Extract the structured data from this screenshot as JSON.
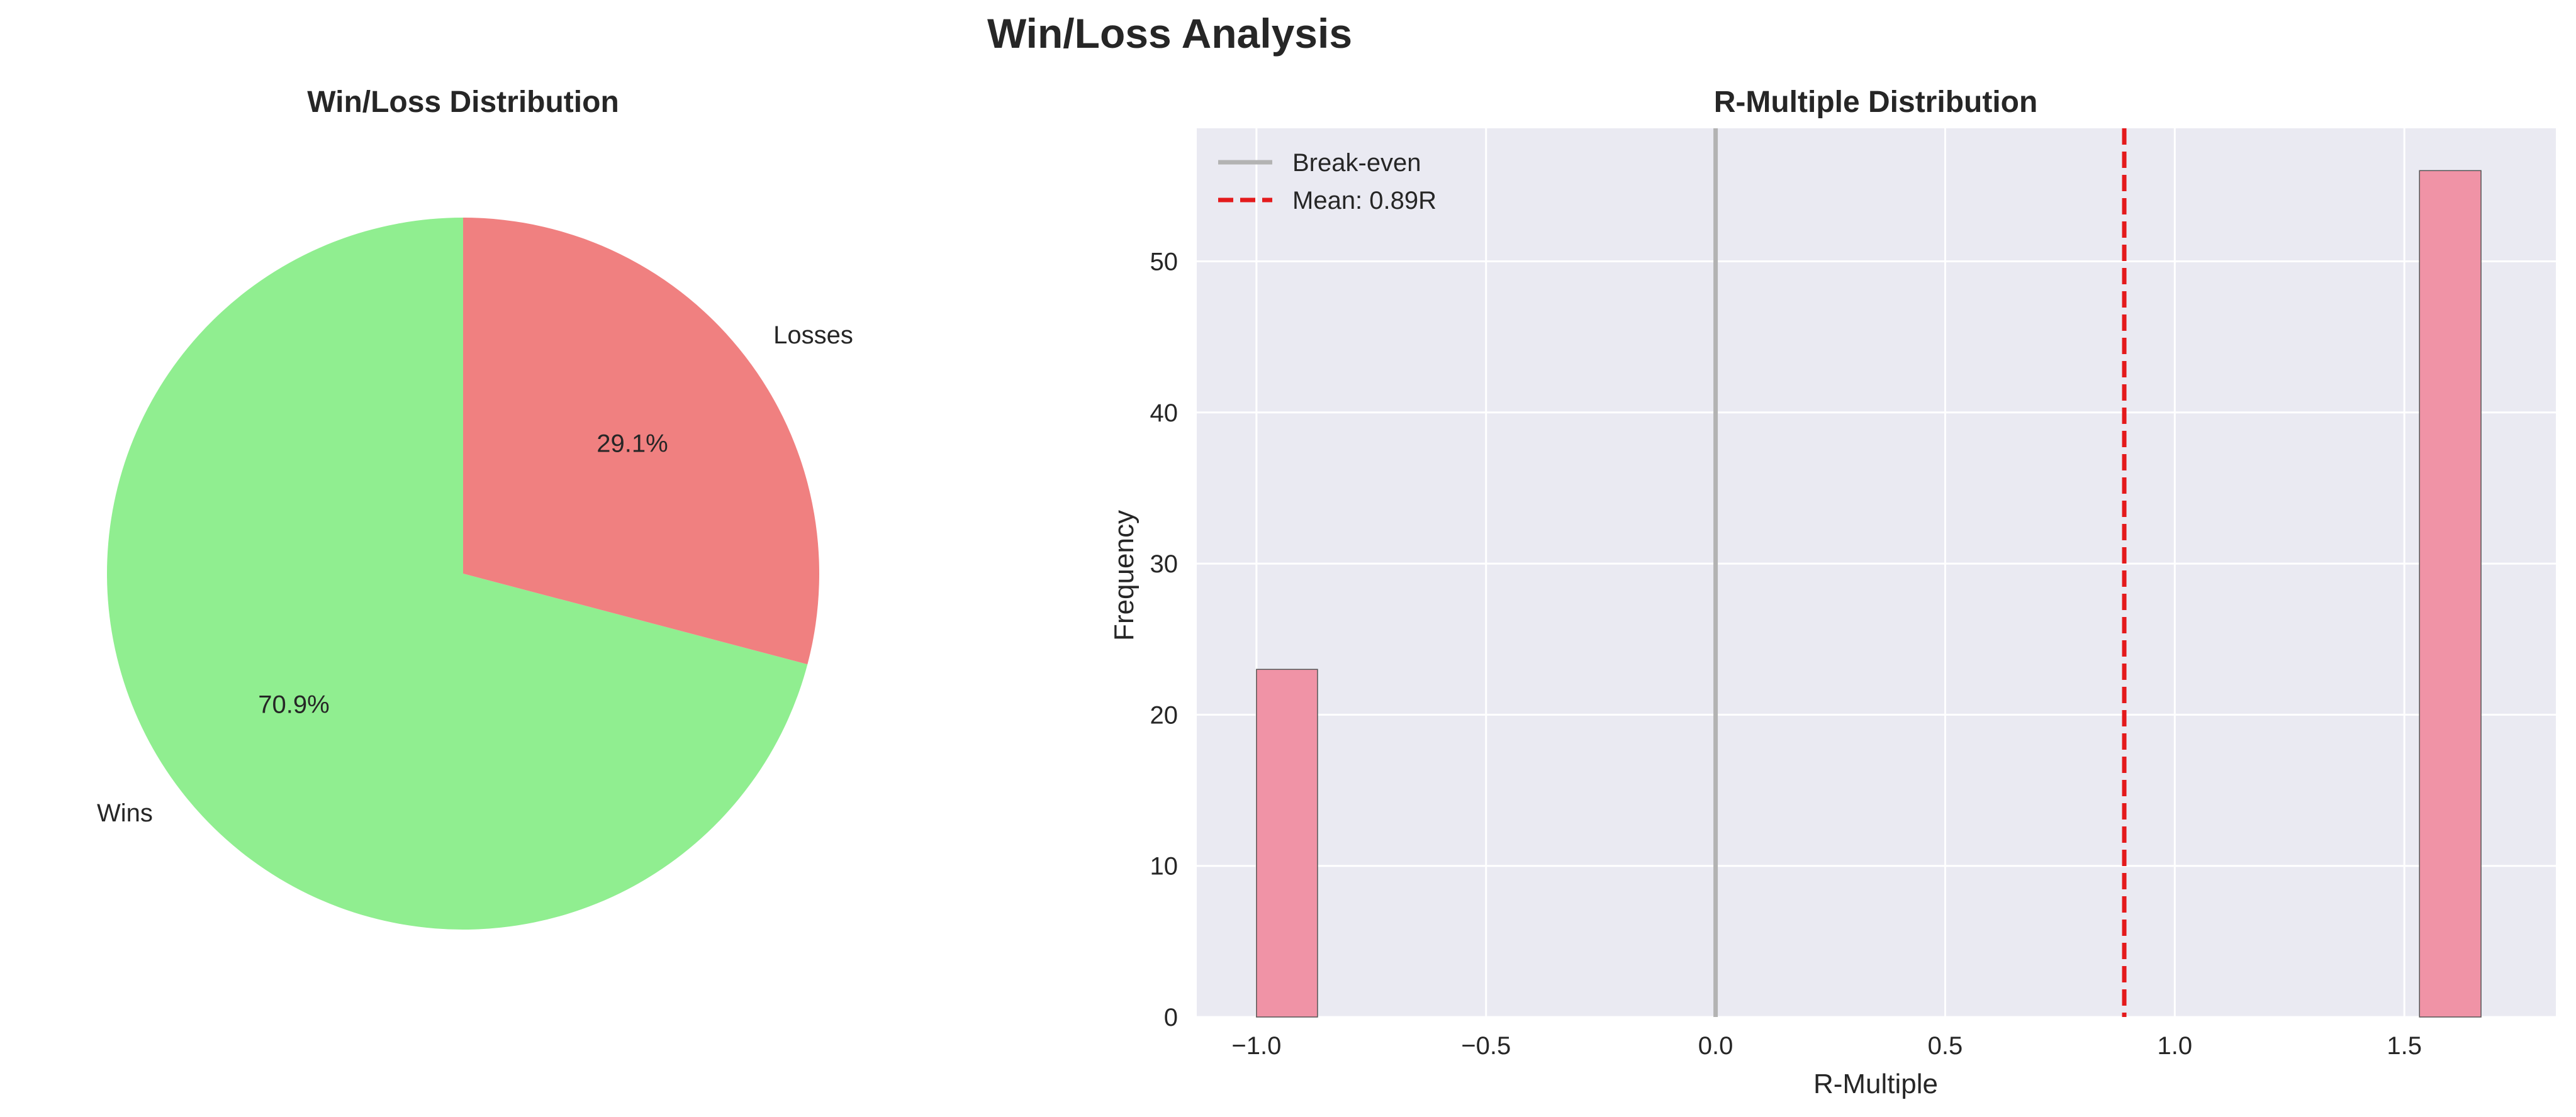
{
  "figure": {
    "title": "Win/Loss Analysis"
  },
  "chart_data": [
    {
      "type": "pie",
      "title": "Win/Loss Distribution",
      "slices": [
        {
          "label": "Wins",
          "value": 70.9,
          "pct_label": "70.9%",
          "color": "#90ee90"
        },
        {
          "label": "Losses",
          "value": 29.1,
          "pct_label": "29.1%",
          "color": "#f08080"
        }
      ],
      "start_angle_deg": 90,
      "direction": "counterclockwise"
    },
    {
      "type": "bar",
      "subtype": "histogram",
      "title": "R-Multiple Distribution",
      "xlabel": "R-Multiple",
      "ylabel": "Frequency",
      "xlim": [
        -1.13,
        1.83
      ],
      "ylim": [
        0,
        58.8
      ],
      "xticks": [
        -1.0,
        -0.5,
        0.0,
        0.5,
        1.0,
        1.5
      ],
      "xtick_labels": [
        "−1.0",
        "−0.5",
        "0.0",
        "0.5",
        "1.0",
        "1.5"
      ],
      "yticks": [
        0,
        10,
        20,
        30,
        40,
        50
      ],
      "ytick_labels": [
        "0",
        "10",
        "20",
        "30",
        "40",
        "50"
      ],
      "bins": [
        {
          "x0": -1.0,
          "x1": -0.867,
          "count": 23
        },
        {
          "x0": 1.533,
          "x1": 1.667,
          "count": 56
        }
      ],
      "bar_color": "#f093a6",
      "background": "#eaeaf2",
      "grid": true,
      "reference_lines": [
        {
          "name": "Break-even",
          "x": 0.0,
          "color": "#b3b3b3",
          "style": "solid"
        },
        {
          "name": "Mean: 0.89R",
          "x": 0.89,
          "color": "#e41a1c",
          "style": "dashed"
        }
      ],
      "legend": {
        "position": "top-left",
        "entries": [
          "Break-even",
          "Mean: 0.89R"
        ]
      }
    }
  ]
}
